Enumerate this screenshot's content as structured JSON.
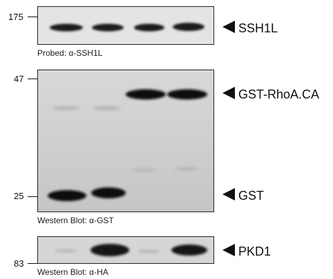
{
  "panels": {
    "top": {
      "markers": [
        "175"
      ],
      "band_label": "SSH1L",
      "caption": "Probed: α-SSH1L"
    },
    "middle": {
      "markers": [
        "47",
        "25"
      ],
      "band_labels": [
        "GST-RhoA.CA",
        "GST"
      ],
      "caption": "Western Blot: α-GST"
    },
    "bottom": {
      "markers": [
        "83"
      ],
      "band_label": "PKD1",
      "caption": "Western Blot: α-HA"
    }
  },
  "colors": {
    "top_bg": "#e4e4e4",
    "middle_bg": "#d0d0d0",
    "bottom_bg": "#d6d6d6",
    "band": "#141414"
  }
}
